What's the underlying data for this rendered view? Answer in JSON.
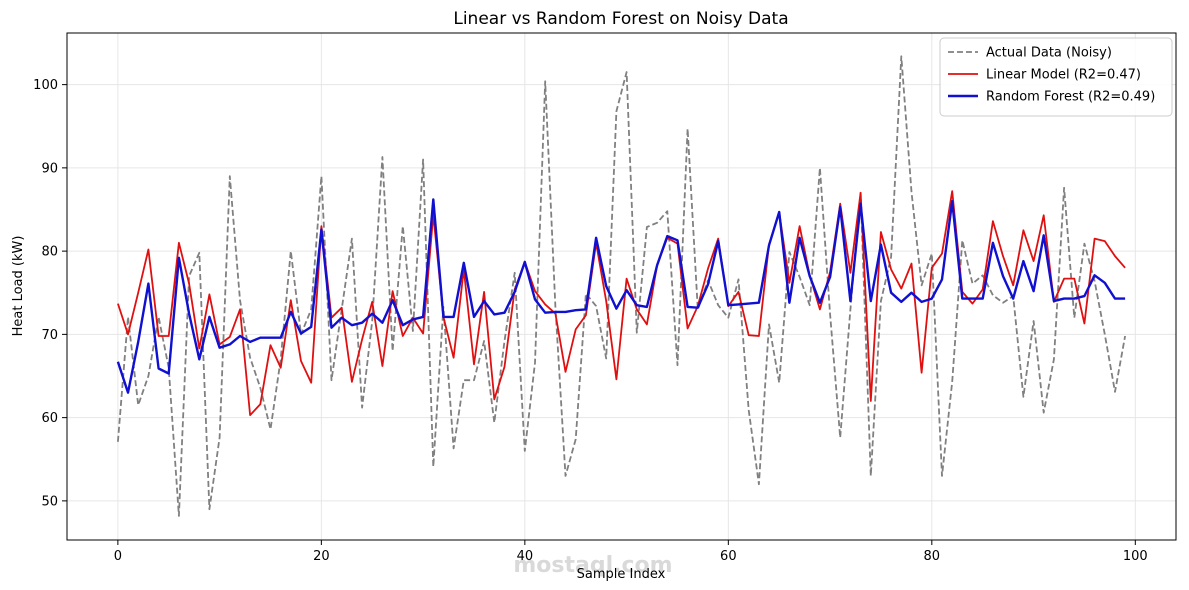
{
  "chart_data": {
    "type": "line",
    "title": "Linear vs Random Forest on Noisy Data",
    "xlabel": "Sample Index",
    "ylabel": "Heat Load (kW)",
    "xlim": [
      -5,
      104
    ],
    "ylim": [
      45.3,
      106.2
    ],
    "xticks": [
      0,
      20,
      40,
      60,
      80,
      100
    ],
    "yticks": [
      50,
      60,
      70,
      80,
      90,
      100
    ],
    "grid": true,
    "legend_position": "top-right",
    "watermark": "mostaql.com",
    "series": [
      {
        "name": "Actual Data (Noisy)",
        "color": "#808080",
        "style": "dashed",
        "x": [
          0,
          1,
          2,
          3,
          4,
          5,
          6,
          7,
          8,
          9,
          10,
          11,
          12,
          13,
          14,
          15,
          16,
          17,
          18,
          19,
          20,
          21,
          22,
          23,
          24,
          25,
          26,
          27,
          28,
          29,
          30,
          31,
          32,
          33,
          34,
          35,
          36,
          37,
          38,
          39,
          40,
          41,
          42,
          43,
          44,
          45,
          46,
          47,
          48,
          49,
          50,
          51,
          52,
          53,
          54,
          55,
          56,
          57,
          58,
          59,
          60,
          61,
          62,
          63,
          64,
          65,
          66,
          67,
          68,
          69,
          70,
          71,
          72,
          73,
          74,
          75,
          76,
          77,
          78,
          79,
          80,
          81,
          82,
          83,
          84,
          85,
          86,
          87,
          88,
          89,
          90,
          91,
          92,
          93,
          94,
          95,
          96,
          97,
          98,
          99
        ],
        "values": [
          57.1,
          72.1,
          61.5,
          65.0,
          72.1,
          66.0,
          48.2,
          77.0,
          79.8,
          49.0,
          57.6,
          89.0,
          74.1,
          67.2,
          63.6,
          58.6,
          67.0,
          80.0,
          70.0,
          73.0,
          89.0,
          64.5,
          73.0,
          81.5,
          61.2,
          71.6,
          91.3,
          68.0,
          83.0,
          70.4,
          91.0,
          54.1,
          73.3,
          56.3,
          64.5,
          64.5,
          69.2,
          59.4,
          69.2,
          77.4,
          56.0,
          66.6,
          100.4,
          73.3,
          53.0,
          57.4,
          74.9,
          73.4,
          67.1,
          96.8,
          101.5,
          70.2,
          82.9,
          83.4,
          84.8,
          66.3,
          94.7,
          73.0,
          76.5,
          73.5,
          72.0,
          76.6,
          60.9,
          52.0,
          71.2,
          64.2,
          79.9,
          76.9,
          73.5,
          90.0,
          72.4,
          57.6,
          73.0,
          87.0,
          53.0,
          74.0,
          79.3,
          103.4,
          87.1,
          75.9,
          79.7,
          53.0,
          64.3,
          81.3,
          76.1,
          77.1,
          74.7,
          73.8,
          74.6,
          62.5,
          71.6,
          60.6,
          67.0,
          87.6,
          72.0,
          80.9,
          76.4,
          70.0,
          63.1,
          69.8
        ]
      },
      {
        "name": "Linear Model (R2=0.47)",
        "color": "#e01010",
        "style": "solid",
        "x": [
          0,
          1,
          2,
          3,
          4,
          5,
          6,
          7,
          8,
          9,
          10,
          11,
          12,
          13,
          14,
          15,
          16,
          17,
          18,
          19,
          20,
          21,
          22,
          23,
          24,
          25,
          26,
          27,
          28,
          29,
          30,
          31,
          32,
          33,
          34,
          35,
          36,
          37,
          38,
          39,
          40,
          41,
          42,
          43,
          44,
          45,
          46,
          47,
          48,
          49,
          50,
          51,
          52,
          53,
          54,
          55,
          56,
          57,
          58,
          59,
          60,
          61,
          62,
          63,
          64,
          65,
          66,
          67,
          68,
          69,
          70,
          71,
          72,
          73,
          74,
          75,
          76,
          77,
          78,
          79,
          80,
          81,
          82,
          83,
          84,
          85,
          86,
          87,
          88,
          89,
          90,
          91,
          92,
          93,
          94,
          95,
          96,
          97,
          98,
          99
        ],
        "values": [
          73.7,
          70.0,
          75.0,
          80.2,
          69.8,
          69.8,
          81.0,
          76.1,
          68.3,
          74.8,
          68.8,
          69.7,
          73.0,
          60.3,
          61.6,
          68.7,
          66.0,
          74.1,
          66.8,
          64.2,
          83.0,
          72.0,
          73.2,
          64.3,
          69.4,
          73.9,
          66.2,
          75.2,
          69.8,
          72.0,
          70.1,
          84.4,
          72.1,
          67.2,
          77.8,
          66.4,
          75.1,
          62.2,
          66.1,
          75.4,
          78.7,
          75.2,
          73.6,
          72.5,
          65.5,
          70.6,
          72.3,
          81.0,
          74.0,
          64.6,
          76.7,
          73.0,
          71.2,
          78.3,
          81.6,
          80.9,
          70.7,
          73.4,
          77.9,
          81.5,
          73.4,
          75.1,
          69.9,
          69.8,
          80.8,
          84.7,
          76.2,
          83.0,
          77.1,
          73.0,
          77.5,
          85.7,
          77.4,
          87.0,
          62.0,
          82.3,
          77.8,
          75.5,
          78.5,
          65.4,
          78.0,
          79.7,
          87.2,
          75.1,
          73.7,
          75.4,
          83.6,
          79.4,
          75.9,
          82.5,
          78.8,
          84.3,
          73.9,
          76.7,
          76.7,
          71.3,
          81.5,
          81.2,
          79.4,
          78.0
        ]
      },
      {
        "name": "Random Forest (R2=0.49)",
        "color": "#1010d0",
        "style": "solid",
        "x": [
          0,
          1,
          2,
          3,
          4,
          5,
          6,
          7,
          8,
          9,
          10,
          11,
          12,
          13,
          14,
          15,
          16,
          17,
          18,
          19,
          20,
          21,
          22,
          23,
          24,
          25,
          26,
          27,
          28,
          29,
          30,
          31,
          32,
          33,
          34,
          35,
          36,
          37,
          38,
          39,
          40,
          41,
          42,
          43,
          44,
          45,
          46,
          47,
          48,
          49,
          50,
          51,
          52,
          53,
          54,
          55,
          56,
          57,
          58,
          59,
          60,
          61,
          62,
          63,
          64,
          65,
          66,
          67,
          68,
          69,
          70,
          71,
          72,
          73,
          74,
          75,
          76,
          77,
          78,
          79,
          80,
          81,
          82,
          83,
          84,
          85,
          86,
          87,
          88,
          89,
          90,
          91,
          92,
          93,
          94,
          95,
          96,
          97,
          98,
          99
        ],
        "values": [
          66.7,
          63.0,
          69.1,
          76.1,
          65.9,
          65.3,
          79.2,
          72.5,
          67.0,
          72.1,
          68.4,
          68.8,
          69.8,
          69.1,
          69.6,
          69.6,
          69.6,
          72.7,
          70.1,
          70.9,
          82.6,
          70.8,
          72.0,
          71.1,
          71.4,
          72.5,
          71.4,
          74.1,
          71.1,
          71.8,
          72.1,
          86.2,
          72.1,
          72.1,
          78.6,
          72.1,
          74.0,
          72.4,
          72.6,
          75.1,
          78.7,
          74.2,
          72.6,
          72.7,
          72.7,
          72.9,
          73.0,
          81.6,
          75.8,
          73.1,
          75.3,
          73.5,
          73.3,
          78.3,
          81.8,
          81.3,
          73.3,
          73.2,
          76.0,
          81.2,
          73.5,
          73.6,
          73.7,
          73.8,
          80.7,
          84.7,
          73.8,
          81.6,
          77.0,
          73.8,
          76.9,
          85.3,
          74.0,
          85.7,
          74.0,
          80.8,
          75.0,
          73.9,
          75.0,
          73.9,
          74.3,
          76.6,
          86.0,
          74.3,
          74.3,
          74.3,
          81.0,
          77.0,
          74.3,
          78.8,
          75.2,
          81.9,
          74.0,
          74.3,
          74.3,
          74.6,
          77.1,
          76.2,
          74.3,
          74.3
        ]
      }
    ]
  }
}
